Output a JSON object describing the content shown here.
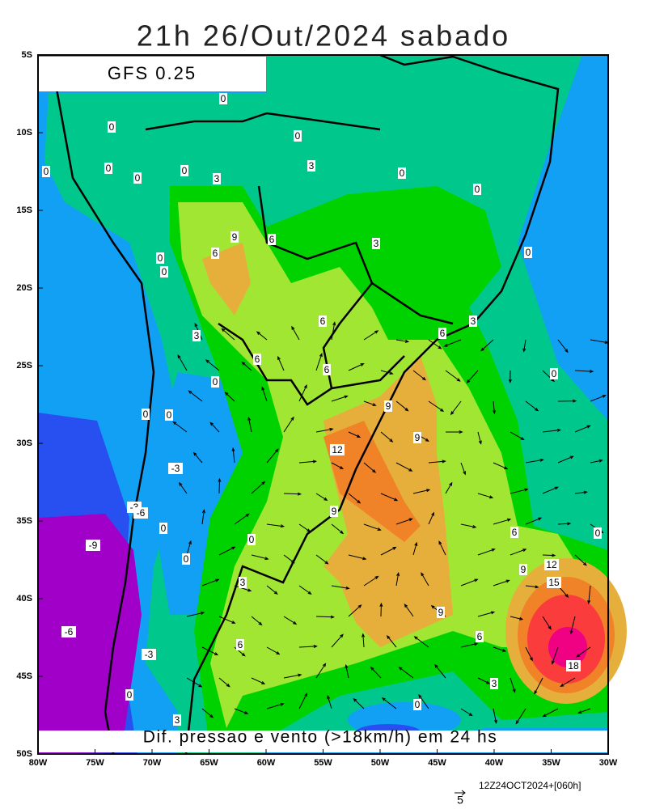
{
  "title": "21h 26/Out/2024 sabado",
  "model_label": "GFS 0.25",
  "caption": "Dif. pressao e vento (>18km/h) em 24 hs",
  "lat_ticks": [
    "5S",
    "10S",
    "15S",
    "20S",
    "25S",
    "30S",
    "35S",
    "40S",
    "45S",
    "50S"
  ],
  "lon_ticks": [
    "80W",
    "75W",
    "70W",
    "65W",
    "60W",
    "55W",
    "50W",
    "45W",
    "40W",
    "35W",
    "30W"
  ],
  "contour_labels": [
    "0",
    "0",
    "0",
    "0",
    "0",
    "0",
    "0",
    "0",
    "0",
    "0",
    "0",
    "0",
    "0",
    "0",
    "0",
    "0",
    "0",
    "0",
    "0",
    "0",
    "0",
    "0",
    "3",
    "3",
    "3",
    "3",
    "3",
    "3",
    "3",
    "3",
    "6",
    "6",
    "6",
    "6",
    "6",
    "6",
    "6",
    "6",
    "6",
    "9",
    "9",
    "9",
    "9",
    "9",
    "9",
    "12",
    "12",
    "15",
    "18",
    "-3",
    "-3",
    "-3",
    "-6",
    "-6",
    "-9"
  ],
  "vector_scale_label": "5",
  "run_label": "12Z24OCT2024+[060h]"
}
